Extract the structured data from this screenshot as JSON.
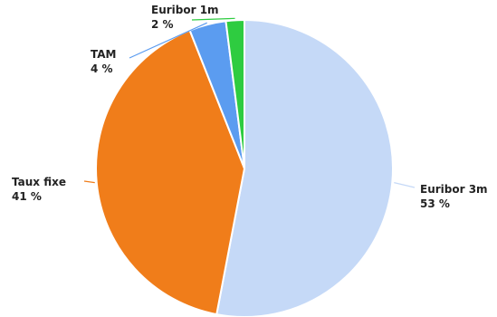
{
  "chart_data": {
    "type": "pie",
    "title": "",
    "slices": [
      {
        "label": "Euribor 3m",
        "percent_label": "53 %",
        "value": 53,
        "color": "#c5d9f7"
      },
      {
        "label": "Taux fixe",
        "percent_label": "41 %",
        "value": 41,
        "color": "#f07d1a"
      },
      {
        "label": "TAM",
        "percent_label": "4 %",
        "value": 4,
        "color": "#5b9cf0"
      },
      {
        "label": "Euribor 1m",
        "percent_label": "2 %",
        "value": 2,
        "color": "#2ecc40"
      }
    ],
    "start_angle_deg": 0,
    "direction": "clockwise",
    "legend": "none",
    "data_labels": "outside-with-leader-lines"
  }
}
